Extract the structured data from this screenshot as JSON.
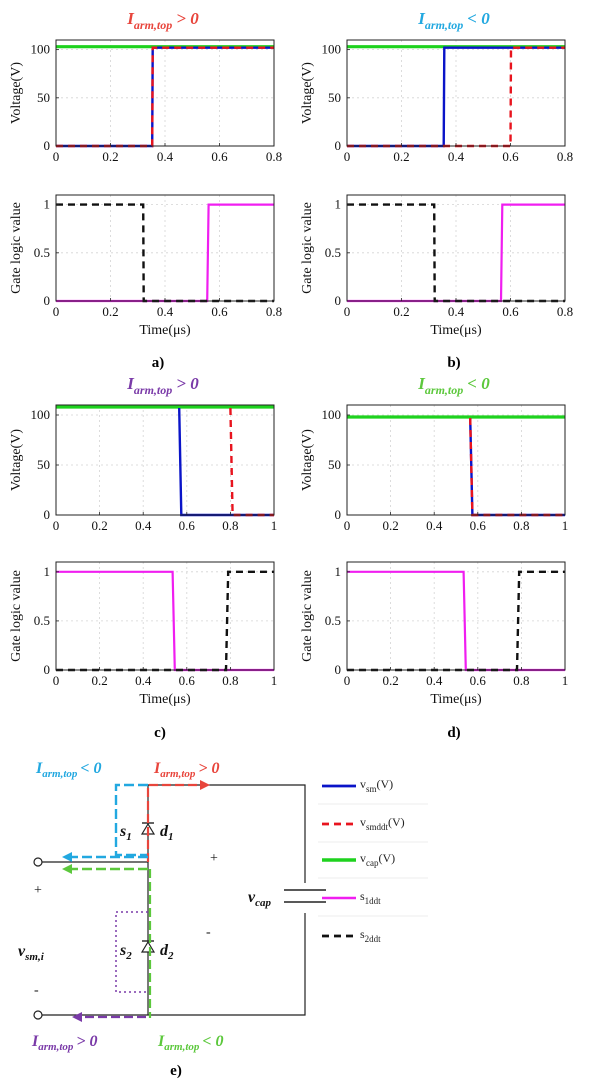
{
  "colors": {
    "vsm": "#0a14c8",
    "vsmddt": "#e8141e",
    "vcap": "#1ed21e",
    "s1ddt": "#f01ef0",
    "s2ddt": "#111111",
    "title_red": "#e8453c",
    "title_cyan": "#22a8e0",
    "title_purple": "#7a3aa8",
    "title_green": "#5cc83c"
  },
  "panel_labels": [
    "a)",
    "b)",
    "c)",
    "d)",
    "e)"
  ],
  "title_symbol": "I",
  "title_subscript": "arm,top",
  "chart_data": [
    {
      "type": "line",
      "title_relation": "> 0",
      "title_color": "title_red",
      "ylabel": "Voltage(V)",
      "xlabel": "",
      "xlim": [
        0,
        0.8
      ],
      "ylim": [
        0,
        110
      ],
      "xticks": [
        "0",
        "0.2",
        "0.4",
        "0.6",
        "0.8"
      ],
      "xtick_values": [
        0,
        0.2,
        0.4,
        0.6,
        0.8
      ],
      "yticks": [
        "0",
        "50",
        "100"
      ],
      "ytick_values": [
        0,
        50,
        100
      ],
      "grid": true,
      "series": [
        {
          "key": "vcap",
          "x": [
            0,
            0.8
          ],
          "y": [
            103,
            103
          ]
        },
        {
          "key": "vsm",
          "x": [
            0,
            0.353,
            0.355,
            0.8
          ],
          "y": [
            0,
            0,
            102,
            102
          ]
        },
        {
          "key": "vsmddt",
          "x": [
            0,
            0.353,
            0.355,
            0.8
          ],
          "y": [
            0,
            0,
            102,
            102
          ]
        }
      ]
    },
    {
      "type": "line",
      "title_relation": "< 0",
      "title_color": "title_cyan",
      "ylabel": "Voltage(V)",
      "xlabel": "",
      "xlim": [
        0,
        0.8
      ],
      "ylim": [
        0,
        110
      ],
      "xticks": [
        "0",
        "0.2",
        "0.4",
        "0.6",
        "0.8"
      ],
      "xtick_values": [
        0,
        0.2,
        0.4,
        0.6,
        0.8
      ],
      "yticks": [
        "0",
        "50",
        "100"
      ],
      "ytick_values": [
        0,
        50,
        100
      ],
      "grid": true,
      "series": [
        {
          "key": "vcap",
          "x": [
            0,
            0.8
          ],
          "y": [
            103,
            103
          ]
        },
        {
          "key": "vsm",
          "x": [
            0,
            0.355,
            0.357,
            0.8
          ],
          "y": [
            0,
            0,
            102,
            102
          ]
        },
        {
          "key": "vsmddt",
          "x": [
            0,
            0.6,
            0.602,
            0.8
          ],
          "y": [
            0,
            0,
            102,
            102
          ]
        }
      ]
    },
    {
      "type": "line",
      "title_relation": "",
      "title_color": "",
      "ylabel": "Gate logic value",
      "xlabel": "Time(μs)",
      "xlim": [
        0,
        0.8
      ],
      "ylim": [
        0,
        1.1
      ],
      "xticks": [
        "0",
        "0.2",
        "0.4",
        "0.6",
        "0.8"
      ],
      "xtick_values": [
        0,
        0.2,
        0.4,
        0.6,
        0.8
      ],
      "yticks": [
        "0",
        "0.5",
        "1"
      ],
      "ytick_values": [
        0,
        0.5,
        1
      ],
      "grid": true,
      "series": [
        {
          "key": "s1ddt",
          "x": [
            0,
            0.555,
            0.56,
            0.8
          ],
          "y": [
            0,
            0,
            1,
            1
          ]
        },
        {
          "key": "s2ddt",
          "x": [
            0,
            0.32,
            0.322,
            0.8
          ],
          "y": [
            1,
            1,
            0,
            0
          ]
        }
      ]
    },
    {
      "type": "line",
      "title_relation": "",
      "title_color": "",
      "ylabel": "Gate logic value",
      "xlabel": "Time(μs)",
      "xlim": [
        0,
        0.8
      ],
      "ylim": [
        0,
        1.1
      ],
      "xticks": [
        "0",
        "0.2",
        "0.4",
        "0.6",
        "0.8"
      ],
      "xtick_values": [
        0,
        0.2,
        0.4,
        0.6,
        0.8
      ],
      "yticks": [
        "0",
        "0.5",
        "1"
      ],
      "ytick_values": [
        0,
        0.5,
        1
      ],
      "grid": true,
      "series": [
        {
          "key": "s1ddt",
          "x": [
            0,
            0.565,
            0.57,
            0.8
          ],
          "y": [
            0,
            0,
            1,
            1
          ]
        },
        {
          "key": "s2ddt",
          "x": [
            0,
            0.32,
            0.322,
            0.8
          ],
          "y": [
            1,
            1,
            0,
            0
          ]
        }
      ]
    },
    {
      "type": "line",
      "title_relation": "> 0",
      "title_color": "title_purple",
      "ylabel": "Voltage(V)",
      "xlabel": "",
      "xlim": [
        0,
        1
      ],
      "ylim": [
        0,
        110
      ],
      "xticks": [
        "0",
        "0.2",
        "0.4",
        "0.6",
        "0.8",
        "1"
      ],
      "xtick_values": [
        0,
        0.2,
        0.4,
        0.6,
        0.8,
        1
      ],
      "yticks": [
        "0",
        "50",
        "100"
      ],
      "ytick_values": [
        0,
        50,
        100
      ],
      "grid": true,
      "series": [
        {
          "key": "vcap",
          "x": [
            0,
            1
          ],
          "y": [
            108,
            108
          ]
        },
        {
          "key": "vsm",
          "x": [
            0.565,
            0.575,
            1
          ],
          "y": [
            107,
            0,
            0
          ]
        },
        {
          "key": "vsmddt",
          "x": [
            0.8,
            0.81,
            1
          ],
          "y": [
            107,
            0,
            0
          ]
        }
      ]
    },
    {
      "type": "line",
      "title_relation": "< 0",
      "title_color": "title_green",
      "ylabel": "Voltage(V)",
      "xlabel": "",
      "xlim": [
        0,
        1
      ],
      "ylim": [
        0,
        110
      ],
      "xticks": [
        "0",
        "0.2",
        "0.4",
        "0.6",
        "0.8",
        "1"
      ],
      "xtick_values": [
        0,
        0.2,
        0.4,
        0.6,
        0.8,
        1
      ],
      "yticks": [
        "0",
        "50",
        "100"
      ],
      "ytick_values": [
        0,
        50,
        100
      ],
      "grid": true,
      "series": [
        {
          "key": "vcap",
          "x": [
            0,
            1
          ],
          "y": [
            98,
            98
          ]
        },
        {
          "key": "vsm",
          "x": [
            0.565,
            0.575,
            1
          ],
          "y": [
            97,
            0,
            0
          ]
        },
        {
          "key": "vsmddt",
          "x": [
            0.565,
            0.575,
            1
          ],
          "y": [
            97,
            0,
            0
          ]
        }
      ]
    },
    {
      "type": "line",
      "title_relation": "",
      "title_color": "",
      "ylabel": "Gate logic value",
      "xlabel": "Time(μs)",
      "xlim": [
        0,
        1
      ],
      "ylim": [
        0,
        1.1
      ],
      "xticks": [
        "0",
        "0.2",
        "0.4",
        "0.6",
        "0.8",
        "1"
      ],
      "xtick_values": [
        0,
        0.2,
        0.4,
        0.6,
        0.8,
        1
      ],
      "yticks": [
        "0",
        "0.5",
        "1"
      ],
      "ytick_values": [
        0,
        0.5,
        1
      ],
      "grid": true,
      "series": [
        {
          "key": "s1ddt",
          "x": [
            0,
            0.535,
            0.545,
            1
          ],
          "y": [
            1,
            1,
            0,
            0
          ]
        },
        {
          "key": "s2ddt",
          "x": [
            0,
            0.78,
            0.79,
            1
          ],
          "y": [
            0,
            0,
            1,
            1
          ]
        }
      ]
    },
    {
      "type": "line",
      "title_relation": "",
      "title_color": "",
      "ylabel": "Gate logic value",
      "xlabel": "Time(μs)",
      "xlim": [
        0,
        1
      ],
      "ylim": [
        0,
        1.1
      ],
      "xticks": [
        "0",
        "0.2",
        "0.4",
        "0.6",
        "0.8",
        "1"
      ],
      "xtick_values": [
        0,
        0.2,
        0.4,
        0.6,
        0.8,
        1
      ],
      "yticks": [
        "0",
        "0.5",
        "1"
      ],
      "ytick_values": [
        0,
        0.5,
        1
      ],
      "grid": true,
      "series": [
        {
          "key": "s1ddt",
          "x": [
            0,
            0.535,
            0.545,
            1
          ],
          "y": [
            1,
            1,
            0,
            0
          ]
        },
        {
          "key": "s2ddt",
          "x": [
            0,
            0.78,
            0.79,
            1
          ],
          "y": [
            0,
            0,
            1,
            1
          ]
        }
      ]
    }
  ],
  "legend": [
    {
      "key": "vsm",
      "label": "v",
      "sub": "sm",
      "suffix": "(V)"
    },
    {
      "key": "vsmddt",
      "label": "v",
      "sub": "smddt",
      "suffix": "(V)"
    },
    {
      "key": "vcap",
      "label": "v",
      "sub": "cap",
      "suffix": "(V)"
    },
    {
      "key": "s1ddt",
      "label": "s",
      "sub": "1ddt",
      "suffix": ""
    },
    {
      "key": "s2ddt",
      "label": "s",
      "sub": "2ddt",
      "suffix": ""
    }
  ],
  "circuit": {
    "label_top_left": {
      "relation": "< 0"
    },
    "label_top_right": {
      "relation": "> 0"
    },
    "label_bottom_left": {
      "relation": "> 0"
    },
    "label_bottom_right": {
      "relation": "< 0"
    },
    "s1": "s",
    "s1_sub": "1",
    "d1": "d",
    "d1_sub": "1",
    "s2": "s",
    "s2_sub": "2",
    "d2": "d",
    "d2_sub": "2",
    "vcap": "v",
    "vcap_sub": "cap",
    "vsm": "v",
    "vsm_sub": "sm,i",
    "plus": "+",
    "minus": "-"
  }
}
